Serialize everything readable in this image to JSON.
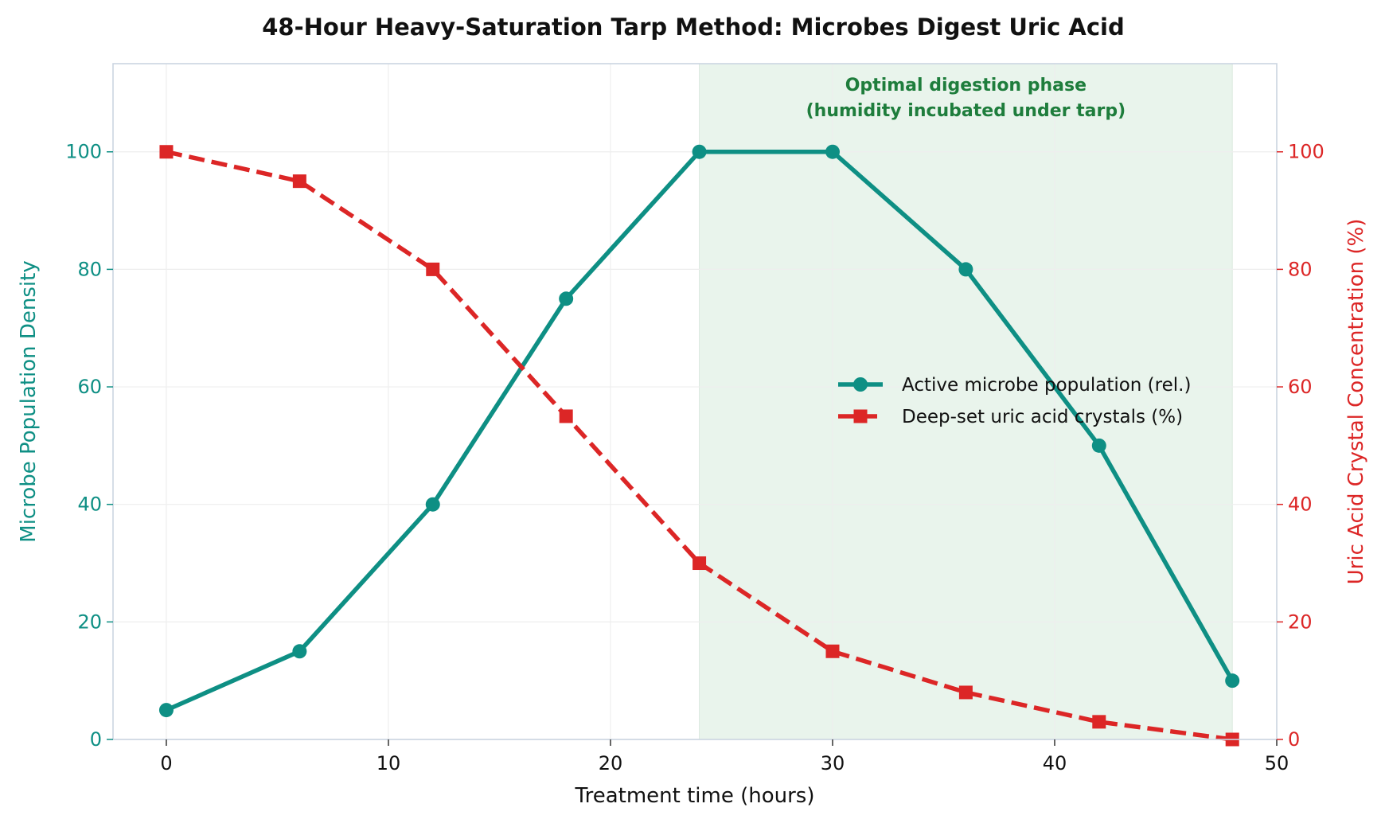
{
  "chart_data": {
    "type": "line",
    "title": "48-Hour Heavy-Saturation Tarp Method: Microbes Digest Uric Acid",
    "xlabel": "Treatment time (hours)",
    "ylabel_left": "Microbe Population Density",
    "ylabel_right": "Uric Acid Crystal Concentration (%)",
    "xlim": [
      -2.4,
      50
    ],
    "ylim_left": [
      0,
      115
    ],
    "ylim_right": [
      0,
      115
    ],
    "x_ticks": [
      0,
      10,
      20,
      30,
      40,
      50
    ],
    "y_ticks_left": [
      0,
      20,
      40,
      60,
      80,
      100
    ],
    "y_ticks_right": [
      0,
      20,
      40,
      60,
      80,
      100
    ],
    "grid": true,
    "legend_position": "center-right",
    "x": [
      0,
      6,
      12,
      18,
      24,
      30,
      36,
      42,
      48
    ],
    "series": [
      {
        "name": "Active microbe population (rel.)",
        "axis": "left",
        "color": "#0e8f84",
        "marker": "circle",
        "line_style": "solid",
        "values": [
          5,
          15,
          40,
          75,
          100,
          100,
          80,
          50,
          10
        ]
      },
      {
        "name": "Deep-set uric acid crystals (%)",
        "axis": "right",
        "color": "#dc2626",
        "marker": "square",
        "line_style": "dashed",
        "values": [
          100,
          95,
          80,
          55,
          30,
          15,
          8,
          3,
          0
        ]
      }
    ],
    "shaded_region": {
      "x_range": [
        24,
        48
      ],
      "color": "#e9f4ec",
      "label_line1": "Optimal digestion phase",
      "label_line2": "(humidity incubated under tarp)"
    },
    "colors": {
      "left_axis": "#0e8f84",
      "right_axis": "#dc2626",
      "grid": "#eeeeee",
      "spine": "#cbd5e1",
      "annotation": "#1e7d3c"
    }
  }
}
